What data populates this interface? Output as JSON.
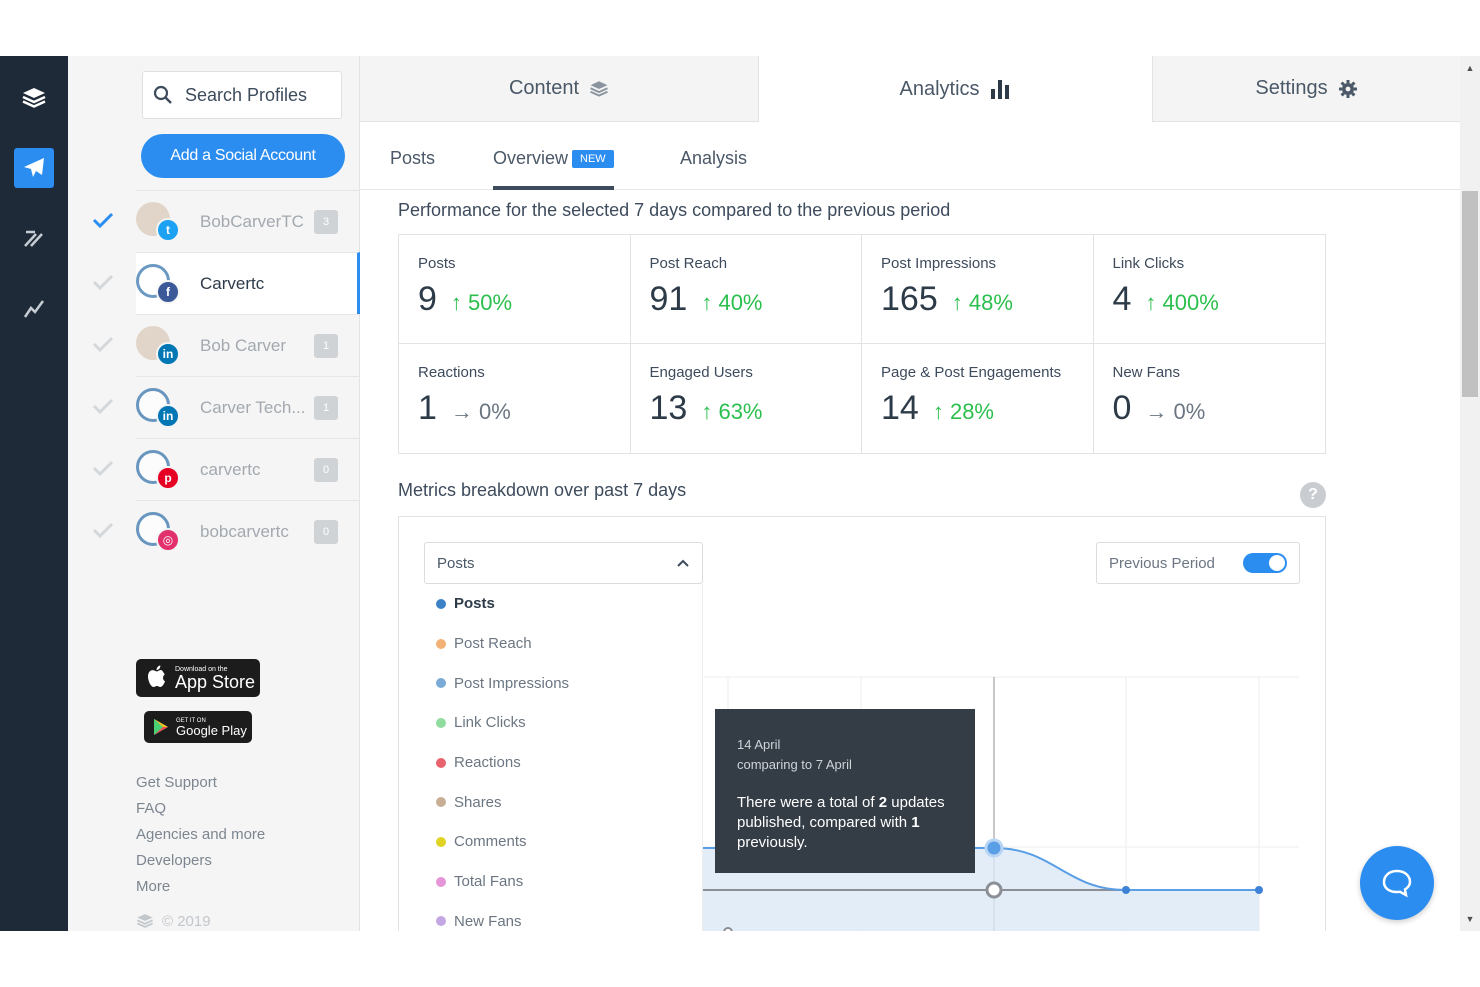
{
  "sidebar": {
    "search_placeholder": "Search Profiles",
    "add_button": "Add a Social Account",
    "profiles": [
      {
        "name": "BobCarverTC",
        "count": "3",
        "network": "twitter",
        "badge_color": "#1da1f2",
        "checked": true
      },
      {
        "name": "Carvertc",
        "count": "",
        "network": "facebook",
        "badge_color": "#3b5998",
        "checked": false
      },
      {
        "name": "Bob Carver",
        "count": "1",
        "network": "linkedin",
        "badge_color": "#0077b5",
        "checked": false
      },
      {
        "name": "Carver Tech...",
        "count": "1",
        "network": "linkedin",
        "badge_color": "#0077b5",
        "checked": false
      },
      {
        "name": "carvertc",
        "count": "0",
        "network": "pinterest",
        "badge_color": "#e60023",
        "checked": false
      },
      {
        "name": "bobcarvertc",
        "count": "0",
        "network": "instagram",
        "badge_color": "#e1306c",
        "checked": false
      }
    ],
    "app_store": {
      "small": "Download on the",
      "big": "App Store"
    },
    "google_play": {
      "small": "GET IT ON",
      "big": "Google Play"
    },
    "footer_links": [
      "Get Support",
      "FAQ",
      "Agencies and more",
      "Developers",
      "More"
    ],
    "copyright": "© 2019"
  },
  "top_tabs": [
    {
      "label": "Content",
      "icon": "layers-icon"
    },
    {
      "label": "Analytics",
      "icon": "bar-chart-icon",
      "active": true
    },
    {
      "label": "Settings",
      "icon": "gear-icon"
    }
  ],
  "sub_tabs": [
    {
      "label": "Posts"
    },
    {
      "label": "Overview",
      "badge": "NEW",
      "active": true
    },
    {
      "label": "Analysis"
    }
  ],
  "performance_title": "Performance for the selected 7 days compared to the previous period",
  "metrics": [
    {
      "label": "Posts",
      "value": "9",
      "change": "50%",
      "dir": "up"
    },
    {
      "label": "Post Reach",
      "value": "91",
      "change": "40%",
      "dir": "up"
    },
    {
      "label": "Post Impressions",
      "value": "165",
      "change": "48%",
      "dir": "up"
    },
    {
      "label": "Link Clicks",
      "value": "4",
      "change": "400%",
      "dir": "up"
    },
    {
      "label": "Reactions",
      "value": "1",
      "change": "0%",
      "dir": "flat"
    },
    {
      "label": "Engaged Users",
      "value": "13",
      "change": "63%",
      "dir": "up"
    },
    {
      "label": "Page & Post Engagements",
      "value": "14",
      "change": "28%",
      "dir": "up"
    },
    {
      "label": "New Fans",
      "value": "0",
      "change": "0%",
      "dir": "flat"
    }
  ],
  "breakdown_title": "Metrics breakdown over past 7 days",
  "chart_panel": {
    "selected_metric": "Posts",
    "options": [
      {
        "label": "Posts",
        "color": "#3d82c7"
      },
      {
        "label": "Post Reach",
        "color": "#f2b277"
      },
      {
        "label": "Post Impressions",
        "color": "#7aaad6"
      },
      {
        "label": "Link Clicks",
        "color": "#8fdc9e"
      },
      {
        "label": "Reactions",
        "color": "#e8636d"
      },
      {
        "label": "Shares",
        "color": "#c9ae96"
      },
      {
        "label": "Comments",
        "color": "#e0d323"
      },
      {
        "label": "Total Fans",
        "color": "#e596d8"
      },
      {
        "label": "New Fans",
        "color": "#c3a7e3"
      }
    ],
    "toggle_label": "Previous Period",
    "toggle_on": true,
    "tooltip": {
      "date": "14 April",
      "comparing": "comparing to 7 April",
      "msg_pre": "There were a total of ",
      "current": "2",
      "msg_mid": " updates published, compared with ",
      "previous": "1",
      "msg_post": " previously."
    }
  },
  "chart_data": {
    "type": "line",
    "series": [
      {
        "name": "Posts",
        "values": [
          2,
          1,
          1
        ]
      },
      {
        "name": "Previous Period",
        "values": [
          1,
          1,
          1
        ]
      }
    ],
    "x": [
      "14 April",
      "",
      ""
    ]
  },
  "colors": {
    "accent": "#2c8df0",
    "rail": "#1f2a38",
    "up": "#2bbf4e"
  }
}
